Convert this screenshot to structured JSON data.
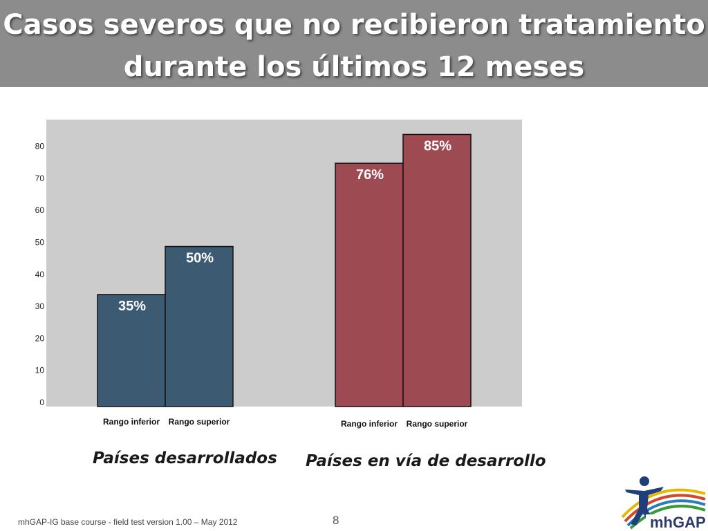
{
  "slide": {
    "title_line1": "Casos severos que no recibieron tratamiento",
    "title_line2": "durante los últimos 12 meses",
    "footer": "mhGAP-IG base course -  field test version 1.00 – May 2012",
    "page_number": "8",
    "logo_text": "mhGAP"
  },
  "chart_data": {
    "type": "bar",
    "y_ticks": [
      0,
      10,
      20,
      30,
      40,
      50,
      60,
      70,
      80
    ],
    "ylim": [
      0,
      90
    ],
    "grid": false,
    "groups": [
      {
        "name": "Países desarrollados",
        "color": "#3d5a73",
        "bars": [
          {
            "category": "Rango inferior",
            "value": 35,
            "label": "35%"
          },
          {
            "category": "Rango superior",
            "value": 50,
            "label": "50%"
          }
        ]
      },
      {
        "name": "Países en vía de desarrollo",
        "color": "#9e4a52",
        "bars": [
          {
            "category": "Rango inferior",
            "value": 76,
            "label": "76%"
          },
          {
            "category": "Rango superior",
            "value": 85,
            "label": "85%"
          }
        ]
      }
    ],
    "colors": {
      "plot_background": "#cccccc",
      "bar_label": "#ffffff"
    }
  }
}
